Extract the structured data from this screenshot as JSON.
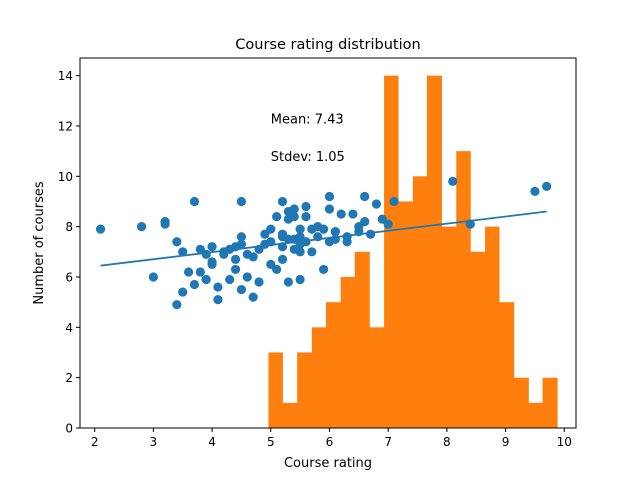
{
  "chart_data": {
    "type": "scatter+histogram",
    "title": "Course rating distribution",
    "xlabel": "Course rating",
    "ylabel": "Number of courses",
    "xlim": [
      1.75,
      10.2
    ],
    "ylim": [
      0,
      14.7
    ],
    "x_ticks": [
      2,
      3,
      4,
      5,
      6,
      7,
      8,
      9,
      10
    ],
    "y_ticks": [
      0,
      2,
      4,
      6,
      8,
      10,
      12,
      14
    ],
    "grid": false,
    "colors": {
      "scatter": "#1f77b4",
      "histogram": "#ff7f0e",
      "trend": "#1f77b4"
    },
    "annotations": [
      {
        "id": "mean",
        "text": "Mean: 7.43",
        "x": 5.0,
        "y": 12.1
      },
      {
        "id": "stdev",
        "text": "Stdev: 1.05",
        "x": 5.0,
        "y": 10.6
      }
    ],
    "histogram": {
      "bin_edges": [
        4.96,
        5.2,
        5.45,
        5.7,
        5.94,
        6.19,
        6.43,
        6.68,
        6.93,
        7.17,
        7.42,
        7.66,
        7.91,
        8.16,
        8.4,
        8.65,
        8.89,
        9.14,
        9.39,
        9.63,
        9.88
      ],
      "counts": [
        3,
        1,
        3,
        4,
        5,
        6,
        7,
        4,
        14,
        9,
        10,
        14,
        8,
        11,
        7,
        8,
        5,
        2,
        1,
        2
      ]
    },
    "trendline": {
      "x": [
        2.1,
        9.7
      ],
      "y": [
        6.45,
        8.6
      ]
    },
    "scatter": {
      "x": [
        2.1,
        2.8,
        3.0,
        3.2,
        3.2,
        3.4,
        3.4,
        3.5,
        3.5,
        3.6,
        3.7,
        3.7,
        3.8,
        3.8,
        3.9,
        3.9,
        4.0,
        4.0,
        4.0,
        4.1,
        4.1,
        4.2,
        4.2,
        4.3,
        4.3,
        4.4,
        4.4,
        4.4,
        4.5,
        4.5,
        4.5,
        4.5,
        4.6,
        4.6,
        4.7,
        4.7,
        4.8,
        4.8,
        4.9,
        4.9,
        5.0,
        5.0,
        5.0,
        5.1,
        5.1,
        5.2,
        5.2,
        5.2,
        5.2,
        5.2,
        5.3,
        5.3,
        5.3,
        5.3,
        5.4,
        5.4,
        5.4,
        5.4,
        5.5,
        5.5,
        5.5,
        5.5,
        5.5,
        5.6,
        5.6,
        5.6,
        5.7,
        5.7,
        5.8,
        5.8,
        5.9,
        5.9,
        6.0,
        6.0,
        6.0,
        6.1,
        6.1,
        6.1,
        6.2,
        6.3,
        6.3,
        6.4,
        6.5,
        6.5,
        6.6,
        6.6,
        6.7,
        6.8,
        6.9,
        7.0,
        7.1,
        8.1,
        8.4,
        9.5,
        9.7
      ],
      "y": [
        7.9,
        8.0,
        6.0,
        8.2,
        8.1,
        7.4,
        4.9,
        7.0,
        5.4,
        6.2,
        9.0,
        5.7,
        7.1,
        6.2,
        6.9,
        5.9,
        6.6,
        6.5,
        7.2,
        5.6,
        5.1,
        6.9,
        7.0,
        7.1,
        5.9,
        6.7,
        7.2,
        6.3,
        7.6,
        7.3,
        5.5,
        9.0,
        6.9,
        6.0,
        6.8,
        5.2,
        7.1,
        5.8,
        7.3,
        7.7,
        7.4,
        7.9,
        6.5,
        8.4,
        6.3,
        9.0,
        7.6,
        7.7,
        7.2,
        6.7,
        8.3,
        8.6,
        7.5,
        5.8,
        8.4,
        8.7,
        7.5,
        7.1,
        7.9,
        7.6,
        7.3,
        7.0,
        5.9,
        8.4,
        8.8,
        7.4,
        7.0,
        7.9,
        7.6,
        8.0,
        6.3,
        7.9,
        9.2,
        8.7,
        7.4,
        7.8,
        7.5,
        7.8,
        8.5,
        7.6,
        7.4,
        8.5,
        8.0,
        7.8,
        8.2,
        9.2,
        7.7,
        8.9,
        8.3,
        8.1,
        9.0,
        9.8,
        8.1,
        9.4,
        9.6
      ]
    }
  }
}
